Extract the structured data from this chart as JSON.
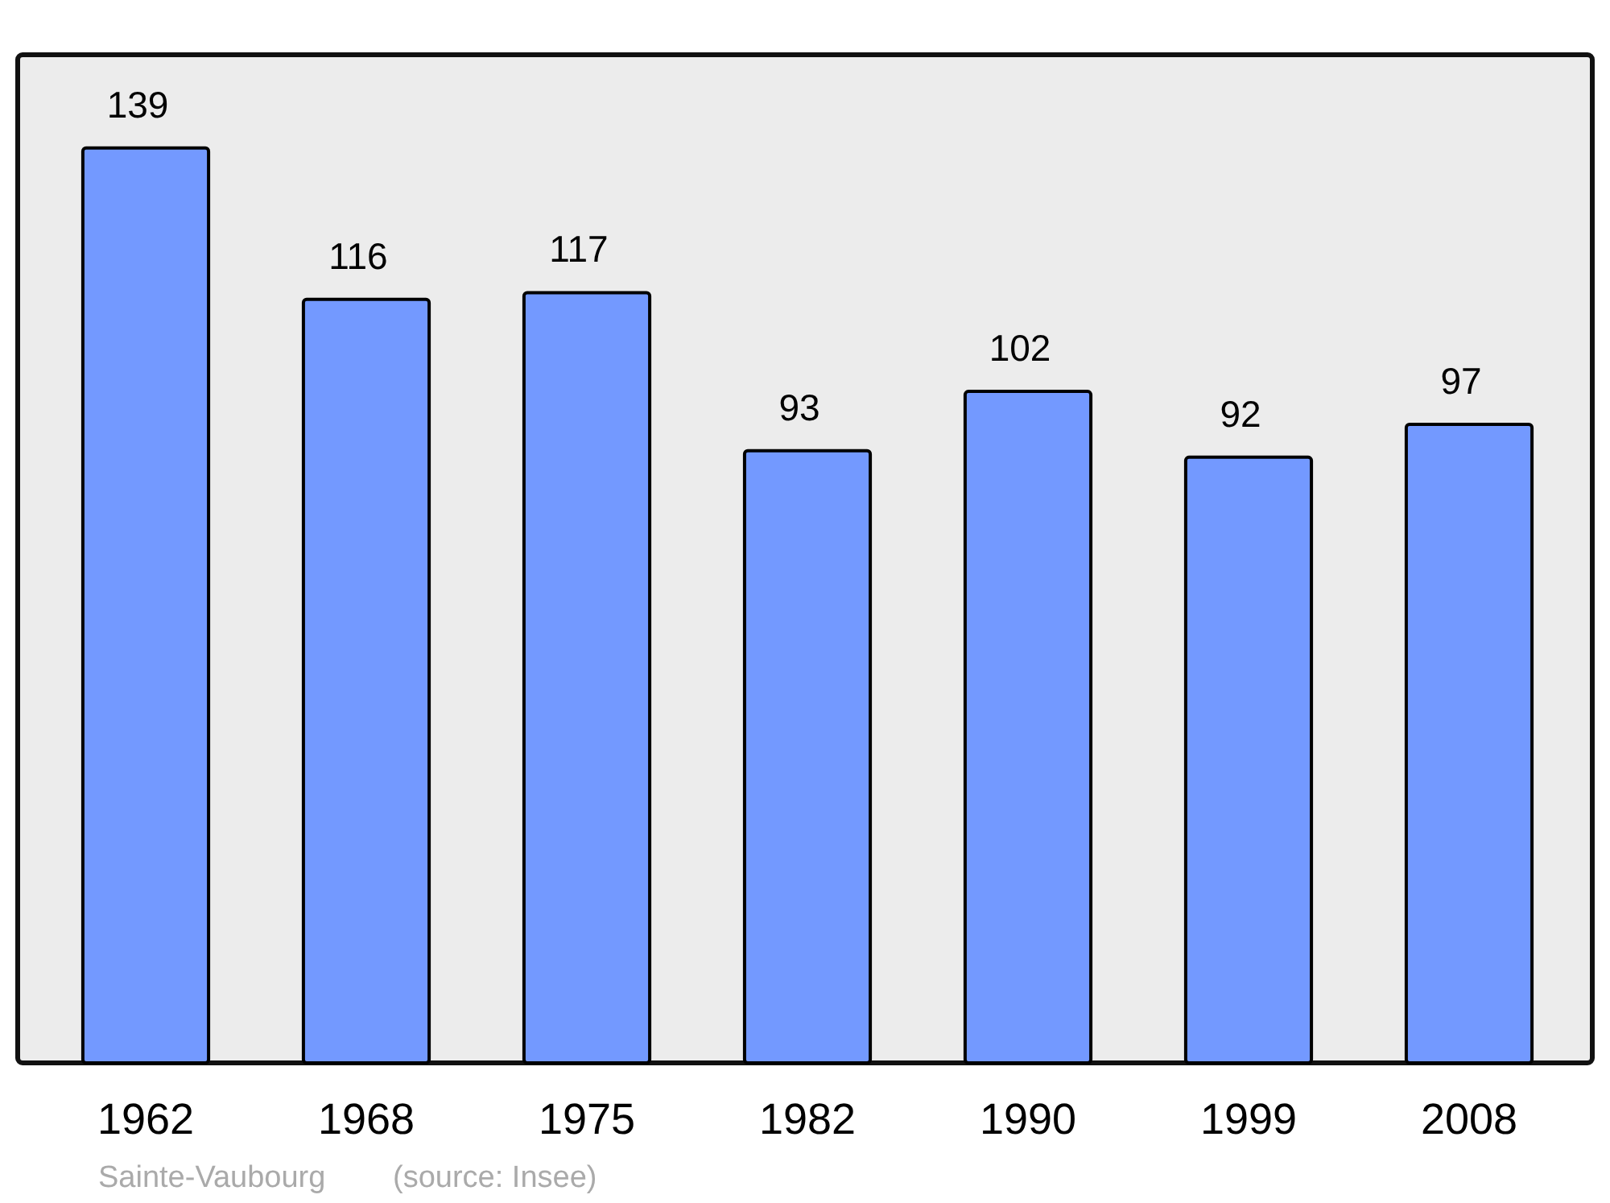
{
  "chart_data": {
    "type": "bar",
    "categories": [
      "1962",
      "1968",
      "1975",
      "1982",
      "1990",
      "1999",
      "2008"
    ],
    "values": [
      139,
      116,
      117,
      93,
      102,
      92,
      97
    ],
    "color": "#7399ff",
    "data_labels": true,
    "annotations": [
      "Sainte-Vaubourg",
      "(source: Insee)"
    ]
  }
}
